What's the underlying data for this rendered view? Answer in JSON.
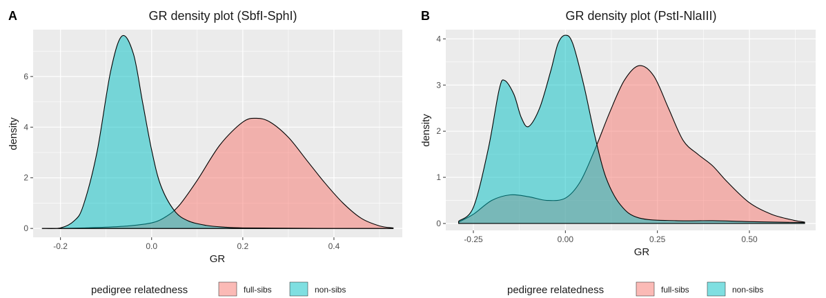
{
  "chart_data": [
    {
      "tag": "A",
      "type": "area",
      "title": "GR density plot (SbfI-SphI)",
      "xlabel": "GR",
      "ylabel": "density",
      "xlim": [
        -0.26,
        0.55
      ],
      "ylim": [
        -0.35,
        7.85
      ],
      "xticks": [
        -0.2,
        0.0,
        0.2,
        0.4
      ],
      "xtick_labels": [
        "-0.2",
        "0.0",
        "0.2",
        "0.4"
      ],
      "yticks": [
        0,
        2,
        4,
        6
      ],
      "ytick_labels": [
        "0",
        "2",
        "4",
        "6"
      ],
      "grid": true,
      "legend": {
        "title": "pedigree relatedness",
        "position": "bottom",
        "entries": [
          {
            "label": "full-sibs",
            "color": "#F8766D"
          },
          {
            "label": "non-sibs",
            "color": "#00BFC4"
          }
        ]
      },
      "series": [
        {
          "name": "full-sibs",
          "color": "#F8766D",
          "x": [
            -0.24,
            -0.2,
            -0.15,
            -0.1,
            -0.05,
            0.0,
            0.03,
            0.06,
            0.1,
            0.15,
            0.2,
            0.23,
            0.26,
            0.3,
            0.34,
            0.38,
            0.42,
            0.46,
            0.5,
            0.53
          ],
          "y": [
            0.0,
            0.0,
            0.02,
            0.05,
            0.1,
            0.22,
            0.45,
            0.9,
            1.9,
            3.3,
            4.2,
            4.35,
            4.2,
            3.6,
            2.7,
            1.8,
            1.0,
            0.4,
            0.1,
            0.02
          ]
        },
        {
          "name": "non-sibs",
          "color": "#00BFC4",
          "x": [
            -0.24,
            -0.2,
            -0.17,
            -0.15,
            -0.12,
            -0.09,
            -0.065,
            -0.04,
            -0.02,
            0.0,
            0.02,
            0.05,
            0.08,
            0.12,
            0.16,
            0.2,
            0.3,
            0.4,
            0.53
          ],
          "y": [
            0.0,
            0.02,
            0.3,
            0.9,
            3.0,
            6.2,
            7.6,
            6.9,
            5.0,
            3.1,
            1.7,
            0.7,
            0.3,
            0.12,
            0.05,
            0.02,
            0.01,
            0.0,
            0.0
          ]
        }
      ]
    },
    {
      "tag": "B",
      "type": "area",
      "title": "GR density plot (PstI-NlaIII)",
      "xlabel": "GR",
      "ylabel": "density",
      "xlim": [
        -0.325,
        0.68
      ],
      "ylim": [
        -0.15,
        4.2
      ],
      "xticks": [
        -0.25,
        0.0,
        0.25,
        0.5
      ],
      "xtick_labels": [
        "-0.25",
        "0.00",
        "0.25",
        "0.50"
      ],
      "yticks": [
        0,
        1,
        2,
        3,
        4
      ],
      "ytick_labels": [
        "0",
        "1",
        "2",
        "3",
        "4"
      ],
      "grid": true,
      "legend": {
        "title": "pedigree relatedness",
        "position": "bottom",
        "entries": [
          {
            "label": "full-sibs",
            "color": "#F8766D"
          },
          {
            "label": "non-sibs",
            "color": "#00BFC4"
          }
        ]
      },
      "series": [
        {
          "name": "full-sibs",
          "color": "#F8766D",
          "x": [
            -0.29,
            -0.25,
            -0.2,
            -0.15,
            -0.1,
            -0.05,
            0.0,
            0.04,
            0.08,
            0.12,
            0.16,
            0.2,
            0.24,
            0.28,
            0.32,
            0.36,
            0.4,
            0.44,
            0.5,
            0.56,
            0.62,
            0.65
          ],
          "y": [
            0.03,
            0.2,
            0.5,
            0.62,
            0.58,
            0.5,
            0.55,
            0.9,
            1.6,
            2.4,
            3.1,
            3.42,
            3.2,
            2.5,
            1.8,
            1.5,
            1.25,
            0.9,
            0.45,
            0.2,
            0.07,
            0.03
          ]
        },
        {
          "name": "non-sibs",
          "color": "#00BFC4",
          "x": [
            -0.29,
            -0.25,
            -0.21,
            -0.18,
            -0.165,
            -0.14,
            -0.12,
            -0.1,
            -0.07,
            -0.04,
            -0.02,
            0.0,
            0.02,
            0.05,
            0.08,
            0.11,
            0.15,
            0.2,
            0.3,
            0.4,
            0.5,
            0.65
          ],
          "y": [
            0.05,
            0.35,
            1.6,
            2.9,
            3.1,
            2.8,
            2.3,
            2.1,
            2.5,
            3.3,
            3.9,
            4.08,
            3.9,
            3.0,
            1.9,
            1.0,
            0.4,
            0.12,
            0.06,
            0.06,
            0.04,
            0.02
          ]
        }
      ]
    }
  ]
}
